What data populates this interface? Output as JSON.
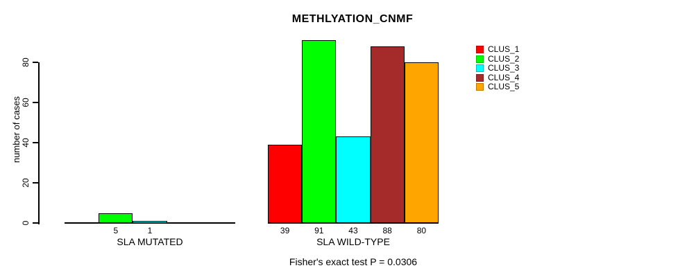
{
  "chart_data": {
    "type": "bar",
    "title": "METHLYATION_CNMF",
    "ylabel": "number of cases",
    "xlabel": "",
    "ylim": [
      0,
      80
    ],
    "yticks": [
      0,
      20,
      40,
      60,
      80
    ],
    "grid": false,
    "legend_position": "right",
    "categories": [
      "SLA MUTATED",
      "SLA WILD-TYPE"
    ],
    "series": [
      {
        "name": "CLUS_1",
        "color": "#FF0000",
        "values": [
          0,
          39
        ]
      },
      {
        "name": "CLUS_2",
        "color": "#00FF00",
        "values": [
          5,
          91
        ]
      },
      {
        "name": "CLUS_3",
        "color": "#00FFFF",
        "values": [
          1,
          43
        ]
      },
      {
        "name": "CLUS_4",
        "color": "#A52A2A",
        "values": [
          0,
          88
        ]
      },
      {
        "name": "CLUS_5",
        "color": "#FFA500",
        "values": [
          0,
          80
        ]
      }
    ],
    "value_labels": {
      "shown": true,
      "zero_values_hidden": true
    },
    "annotation": "Fisher's exact test P = 0.0306",
    "axis_color": "#000000",
    "background_color": "#FFFFFF"
  }
}
